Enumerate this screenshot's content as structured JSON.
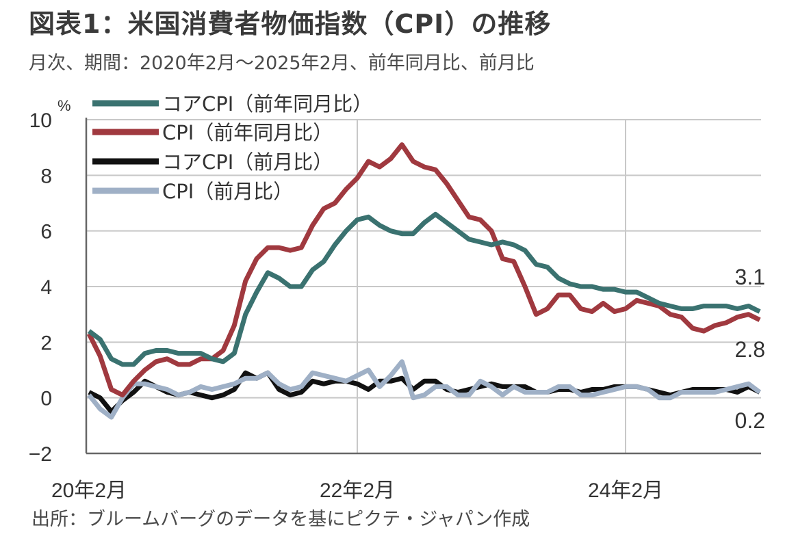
{
  "header": {
    "title": "図表1：米国消費者物価指数（CPI）の推移",
    "subtitle": "月次、期間：2020年2月～2025年2月、前年同月比、前月比"
  },
  "footer": {
    "source": "出所：ブルームバーグのデータを基にピクテ・ジャパン作成"
  },
  "chart_data": {
    "type": "line",
    "ylabel": "%",
    "ylim": [
      -2,
      10
    ],
    "yticks": [
      -2,
      0,
      2,
      4,
      6,
      8,
      10
    ],
    "grid": true,
    "legend_position": "top-left",
    "x_ticks": [
      {
        "index": 0,
        "label": "20年2月"
      },
      {
        "index": 24,
        "label": "22年2月"
      },
      {
        "index": 48,
        "label": "24年2月"
      }
    ],
    "x": [
      "2020-02",
      "2020-03",
      "2020-04",
      "2020-05",
      "2020-06",
      "2020-07",
      "2020-08",
      "2020-09",
      "2020-10",
      "2020-11",
      "2020-12",
      "2021-01",
      "2021-02",
      "2021-03",
      "2021-04",
      "2021-05",
      "2021-06",
      "2021-07",
      "2021-08",
      "2021-09",
      "2021-10",
      "2021-11",
      "2021-12",
      "2022-01",
      "2022-02",
      "2022-03",
      "2022-04",
      "2022-05",
      "2022-06",
      "2022-07",
      "2022-08",
      "2022-09",
      "2022-10",
      "2022-11",
      "2022-12",
      "2023-01",
      "2023-02",
      "2023-03",
      "2023-04",
      "2023-05",
      "2023-06",
      "2023-07",
      "2023-08",
      "2023-09",
      "2023-10",
      "2023-11",
      "2023-12",
      "2024-01",
      "2024-02",
      "2024-03",
      "2024-04",
      "2024-05",
      "2024-06",
      "2024-07",
      "2024-08",
      "2024-09",
      "2024-10",
      "2024-11",
      "2024-12",
      "2025-01",
      "2025-02"
    ],
    "series": [
      {
        "name": "コアCPI（前年同月比）",
        "color": "#3a7270",
        "values": [
          2.4,
          2.1,
          1.4,
          1.2,
          1.2,
          1.6,
          1.7,
          1.7,
          1.6,
          1.6,
          1.6,
          1.4,
          1.3,
          1.6,
          3.0,
          3.8,
          4.5,
          4.3,
          4.0,
          4.0,
          4.6,
          4.9,
          5.5,
          6.0,
          6.4,
          6.5,
          6.2,
          6.0,
          5.9,
          5.9,
          6.3,
          6.6,
          6.3,
          6.0,
          5.7,
          5.6,
          5.5,
          5.6,
          5.5,
          5.3,
          4.8,
          4.7,
          4.3,
          4.1,
          4.0,
          4.0,
          3.9,
          3.9,
          3.8,
          3.8,
          3.6,
          3.4,
          3.3,
          3.2,
          3.2,
          3.3,
          3.3,
          3.3,
          3.2,
          3.3,
          3.1
        ]
      },
      {
        "name": "CPI（前年同月比）",
        "color": "#a0393f",
        "values": [
          2.3,
          1.5,
          0.3,
          0.1,
          0.6,
          1.0,
          1.3,
          1.4,
          1.2,
          1.2,
          1.4,
          1.4,
          1.7,
          2.6,
          4.2,
          5.0,
          5.4,
          5.4,
          5.3,
          5.4,
          6.2,
          6.8,
          7.0,
          7.5,
          7.9,
          8.5,
          8.3,
          8.6,
          9.1,
          8.5,
          8.3,
          8.2,
          7.7,
          7.1,
          6.5,
          6.4,
          6.0,
          5.0,
          4.9,
          4.0,
          3.0,
          3.2,
          3.7,
          3.7,
          3.2,
          3.1,
          3.4,
          3.1,
          3.2,
          3.5,
          3.4,
          3.3,
          3.0,
          2.9,
          2.5,
          2.4,
          2.6,
          2.7,
          2.9,
          3.0,
          2.8
        ]
      },
      {
        "name": "コアCPI（前月比）",
        "color": "#111111",
        "values": [
          0.2,
          0.0,
          -0.5,
          -0.1,
          0.2,
          0.6,
          0.4,
          0.2,
          0.1,
          0.2,
          0.1,
          0.0,
          0.1,
          0.3,
          0.9,
          0.7,
          0.9,
          0.3,
          0.1,
          0.2,
          0.6,
          0.5,
          0.6,
          0.6,
          0.5,
          0.3,
          0.6,
          0.6,
          0.7,
          0.3,
          0.6,
          0.6,
          0.3,
          0.2,
          0.3,
          0.4,
          0.5,
          0.4,
          0.4,
          0.4,
          0.2,
          0.2,
          0.3,
          0.3,
          0.2,
          0.3,
          0.3,
          0.4,
          0.4,
          0.4,
          0.3,
          0.2,
          0.1,
          0.2,
          0.3,
          0.3,
          0.3,
          0.3,
          0.2,
          0.4,
          0.2
        ]
      },
      {
        "name": "CPI（前月比）",
        "color": "#9fb0c6",
        "values": [
          0.1,
          -0.4,
          -0.7,
          0.0,
          0.5,
          0.5,
          0.4,
          0.3,
          0.1,
          0.2,
          0.4,
          0.3,
          0.4,
          0.5,
          0.7,
          0.7,
          0.9,
          0.5,
          0.3,
          0.4,
          0.9,
          0.8,
          0.7,
          0.6,
          0.8,
          1.0,
          0.4,
          0.8,
          1.3,
          0.0,
          0.1,
          0.4,
          0.4,
          0.1,
          0.1,
          0.6,
          0.4,
          0.1,
          0.4,
          0.2,
          0.2,
          0.2,
          0.4,
          0.4,
          0.1,
          0.1,
          0.2,
          0.3,
          0.4,
          0.4,
          0.3,
          0.0,
          0.0,
          0.2,
          0.2,
          0.2,
          0.2,
          0.3,
          0.4,
          0.5,
          0.2
        ]
      }
    ],
    "end_labels": {
      "core_yoy": "3.1",
      "cpi_yoy": "2.8",
      "mom": "0.2"
    }
  }
}
